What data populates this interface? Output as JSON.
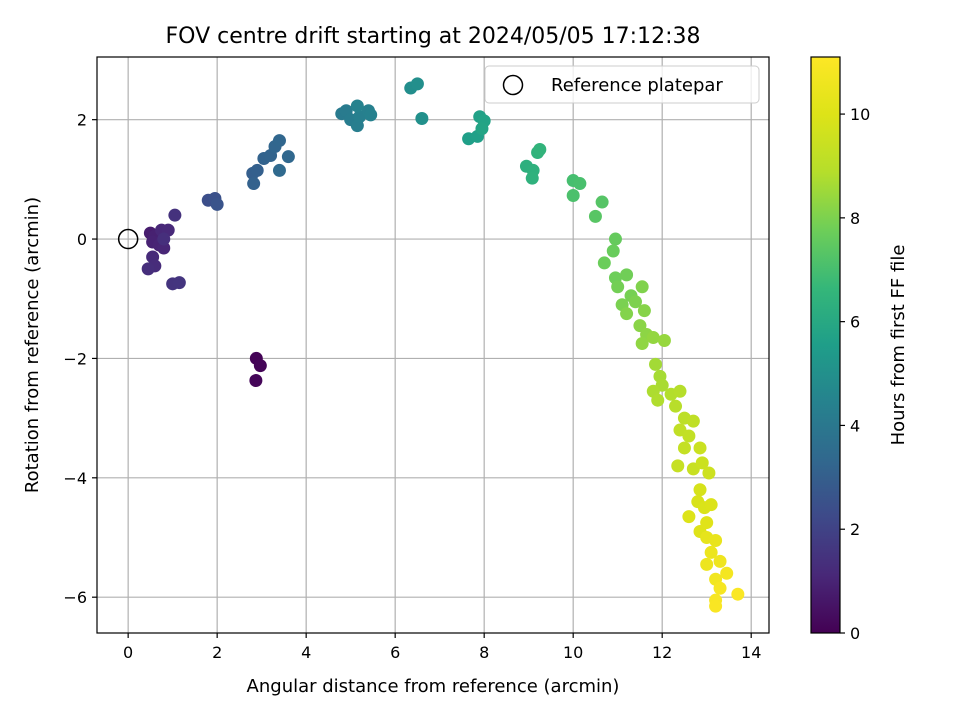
{
  "chart_data": {
    "type": "scatter",
    "title": "FOV centre drift starting at 2024/05/05 17:12:38",
    "xlabel": "Angular distance from reference (arcmin)",
    "ylabel": "Rotation from reference (arcmin)",
    "xlim": [
      -0.7,
      14.4
    ],
    "ylim": [
      -6.6,
      3.05
    ],
    "xticks": [
      0,
      2,
      4,
      6,
      8,
      10,
      12,
      14
    ],
    "yticks": [
      -6,
      -4,
      -2,
      0,
      2
    ],
    "xtick_labels": [
      "0",
      "2",
      "4",
      "6",
      "8",
      "10",
      "12",
      "14"
    ],
    "ytick_labels": [
      "−6",
      "−4",
      "−2",
      "0",
      "2"
    ],
    "grid": true,
    "legend": {
      "label": "Reference platepar",
      "placement": "top-right"
    },
    "reference_point": {
      "x": 0,
      "y": 0
    },
    "colorbar": {
      "label": "Hours from first FF file",
      "range": [
        0,
        11.1
      ],
      "ticks": [
        0,
        2,
        4,
        6,
        8,
        10
      ],
      "tick_labels": [
        "0",
        "2",
        "4",
        "6",
        "8",
        "10"
      ],
      "colormap": "viridis"
    },
    "series": [
      {
        "points": [
          {
            "x": 2.88,
            "y": -2.0,
            "t": 0.05
          },
          {
            "x": 2.97,
            "y": -2.12,
            "t": 0.1
          },
          {
            "x": 2.87,
            "y": -2.37,
            "t": 0.15
          },
          {
            "x": 0.5,
            "y": 0.1,
            "t": 0.8
          },
          {
            "x": 0.6,
            "y": 0.05,
            "t": 0.9
          },
          {
            "x": 0.55,
            "y": -0.05,
            "t": 0.95
          },
          {
            "x": 0.7,
            "y": -0.1,
            "t": 1.0
          },
          {
            "x": 0.8,
            "y": -0.15,
            "t": 1.05
          },
          {
            "x": 0.75,
            "y": 0.15,
            "t": 1.1
          },
          {
            "x": 0.9,
            "y": 0.15,
            "t": 1.15
          },
          {
            "x": 0.55,
            "y": -0.3,
            "t": 1.2
          },
          {
            "x": 0.6,
            "y": -0.45,
            "t": 1.25
          },
          {
            "x": 0.45,
            "y": -0.5,
            "t": 1.3
          },
          {
            "x": 0.8,
            "y": 0.0,
            "t": 1.35
          },
          {
            "x": 1.05,
            "y": 0.4,
            "t": 1.45
          },
          {
            "x": 1.0,
            "y": -0.75,
            "t": 1.5
          },
          {
            "x": 1.15,
            "y": -0.73,
            "t": 1.55
          },
          {
            "x": 1.8,
            "y": 0.65,
            "t": 2.4
          },
          {
            "x": 1.95,
            "y": 0.68,
            "t": 2.5
          },
          {
            "x": 2.0,
            "y": 0.58,
            "t": 2.6
          },
          {
            "x": 2.8,
            "y": 1.1,
            "t": 3.0
          },
          {
            "x": 2.9,
            "y": 1.15,
            "t": 3.05
          },
          {
            "x": 2.82,
            "y": 0.93,
            "t": 3.1
          },
          {
            "x": 3.05,
            "y": 1.35,
            "t": 3.15
          },
          {
            "x": 3.2,
            "y": 1.4,
            "t": 3.2
          },
          {
            "x": 3.3,
            "y": 1.55,
            "t": 3.25
          },
          {
            "x": 3.4,
            "y": 1.65,
            "t": 3.3
          },
          {
            "x": 3.6,
            "y": 1.38,
            "t": 3.35
          },
          {
            "x": 3.4,
            "y": 1.15,
            "t": 3.4
          },
          {
            "x": 4.8,
            "y": 2.1,
            "t": 4.1
          },
          {
            "x": 4.9,
            "y": 2.15,
            "t": 4.15
          },
          {
            "x": 5.0,
            "y": 2.0,
            "t": 4.2
          },
          {
            "x": 5.15,
            "y": 1.9,
            "t": 4.25
          },
          {
            "x": 5.2,
            "y": 2.05,
            "t": 4.3
          },
          {
            "x": 5.4,
            "y": 2.15,
            "t": 4.35
          },
          {
            "x": 5.45,
            "y": 2.08,
            "t": 4.4
          },
          {
            "x": 5.15,
            "y": 2.23,
            "t": 4.45
          },
          {
            "x": 6.35,
            "y": 2.53,
            "t": 4.9
          },
          {
            "x": 6.5,
            "y": 2.6,
            "t": 4.95
          },
          {
            "x": 6.6,
            "y": 2.02,
            "t": 5.0
          },
          {
            "x": 7.65,
            "y": 1.68,
            "t": 5.6
          },
          {
            "x": 7.85,
            "y": 1.72,
            "t": 5.65
          },
          {
            "x": 7.9,
            "y": 2.05,
            "t": 5.7
          },
          {
            "x": 8.0,
            "y": 1.98,
            "t": 5.75
          },
          {
            "x": 7.95,
            "y": 1.85,
            "t": 5.8
          },
          {
            "x": 8.95,
            "y": 1.22,
            "t": 6.3
          },
          {
            "x": 9.1,
            "y": 1.15,
            "t": 6.35
          },
          {
            "x": 9.08,
            "y": 1.02,
            "t": 6.4
          },
          {
            "x": 9.2,
            "y": 1.45,
            "t": 6.45
          },
          {
            "x": 9.25,
            "y": 1.5,
            "t": 6.5
          },
          {
            "x": 10.0,
            "y": 0.98,
            "t": 7.0
          },
          {
            "x": 10.15,
            "y": 0.93,
            "t": 7.05
          },
          {
            "x": 10.0,
            "y": 0.73,
            "t": 7.1
          },
          {
            "x": 10.65,
            "y": 0.62,
            "t": 7.3
          },
          {
            "x": 10.5,
            "y": 0.38,
            "t": 7.35
          },
          {
            "x": 10.95,
            "y": 0.0,
            "t": 7.6
          },
          {
            "x": 10.9,
            "y": -0.2,
            "t": 7.65
          },
          {
            "x": 10.7,
            "y": -0.4,
            "t": 7.7
          },
          {
            "x": 10.95,
            "y": -0.65,
            "t": 7.75
          },
          {
            "x": 11.2,
            "y": -0.6,
            "t": 7.8
          },
          {
            "x": 11.0,
            "y": -0.8,
            "t": 7.85
          },
          {
            "x": 11.3,
            "y": -0.95,
            "t": 7.9
          },
          {
            "x": 11.1,
            "y": -1.1,
            "t": 7.95
          },
          {
            "x": 11.4,
            "y": -1.05,
            "t": 8.0
          },
          {
            "x": 11.55,
            "y": -0.8,
            "t": 8.05
          },
          {
            "x": 11.2,
            "y": -1.25,
            "t": 8.1
          },
          {
            "x": 11.6,
            "y": -1.2,
            "t": 8.15
          },
          {
            "x": 11.5,
            "y": -1.45,
            "t": 8.2
          },
          {
            "x": 11.65,
            "y": -1.6,
            "t": 8.25
          },
          {
            "x": 11.55,
            "y": -1.75,
            "t": 8.3
          },
          {
            "x": 11.8,
            "y": -1.65,
            "t": 8.35
          },
          {
            "x": 12.05,
            "y": -1.7,
            "t": 8.4
          },
          {
            "x": 11.85,
            "y": -2.1,
            "t": 8.6
          },
          {
            "x": 11.95,
            "y": -2.3,
            "t": 8.65
          },
          {
            "x": 12.0,
            "y": -2.45,
            "t": 8.7
          },
          {
            "x": 11.8,
            "y": -2.55,
            "t": 8.75
          },
          {
            "x": 11.9,
            "y": -2.7,
            "t": 8.8
          },
          {
            "x": 12.2,
            "y": -2.6,
            "t": 8.85
          },
          {
            "x": 12.4,
            "y": -2.55,
            "t": 8.9
          },
          {
            "x": 12.3,
            "y": -2.8,
            "t": 8.95
          },
          {
            "x": 12.5,
            "y": -3.0,
            "t": 9.1
          },
          {
            "x": 12.7,
            "y": -3.05,
            "t": 9.15
          },
          {
            "x": 12.4,
            "y": -3.2,
            "t": 9.2
          },
          {
            "x": 12.6,
            "y": -3.3,
            "t": 9.25
          },
          {
            "x": 12.5,
            "y": -3.5,
            "t": 9.3
          },
          {
            "x": 12.35,
            "y": -3.8,
            "t": 9.35
          },
          {
            "x": 12.7,
            "y": -3.85,
            "t": 9.4
          },
          {
            "x": 12.85,
            "y": -3.5,
            "t": 9.45
          },
          {
            "x": 12.9,
            "y": -3.75,
            "t": 9.5
          },
          {
            "x": 13.05,
            "y": -3.92,
            "t": 9.55
          },
          {
            "x": 12.85,
            "y": -4.2,
            "t": 9.8
          },
          {
            "x": 12.8,
            "y": -4.4,
            "t": 9.85
          },
          {
            "x": 12.95,
            "y": -4.5,
            "t": 9.9
          },
          {
            "x": 13.1,
            "y": -4.45,
            "t": 9.95
          },
          {
            "x": 12.6,
            "y": -4.65,
            "t": 10.0
          },
          {
            "x": 12.85,
            "y": -4.9,
            "t": 10.05
          },
          {
            "x": 13.0,
            "y": -4.75,
            "t": 10.1
          },
          {
            "x": 13.0,
            "y": -5.0,
            "t": 10.3
          },
          {
            "x": 13.2,
            "y": -5.05,
            "t": 10.4
          },
          {
            "x": 13.1,
            "y": -5.25,
            "t": 10.5
          },
          {
            "x": 13.0,
            "y": -5.45,
            "t": 10.55
          },
          {
            "x": 13.3,
            "y": -5.4,
            "t": 10.6
          },
          {
            "x": 13.2,
            "y": -5.7,
            "t": 10.7
          },
          {
            "x": 13.45,
            "y": -5.6,
            "t": 10.8
          },
          {
            "x": 13.3,
            "y": -5.85,
            "t": 10.85
          },
          {
            "x": 13.2,
            "y": -6.05,
            "t": 10.9
          },
          {
            "x": 13.2,
            "y": -6.15,
            "t": 10.95
          },
          {
            "x": 13.7,
            "y": -5.95,
            "t": 11.0
          }
        ]
      }
    ]
  }
}
